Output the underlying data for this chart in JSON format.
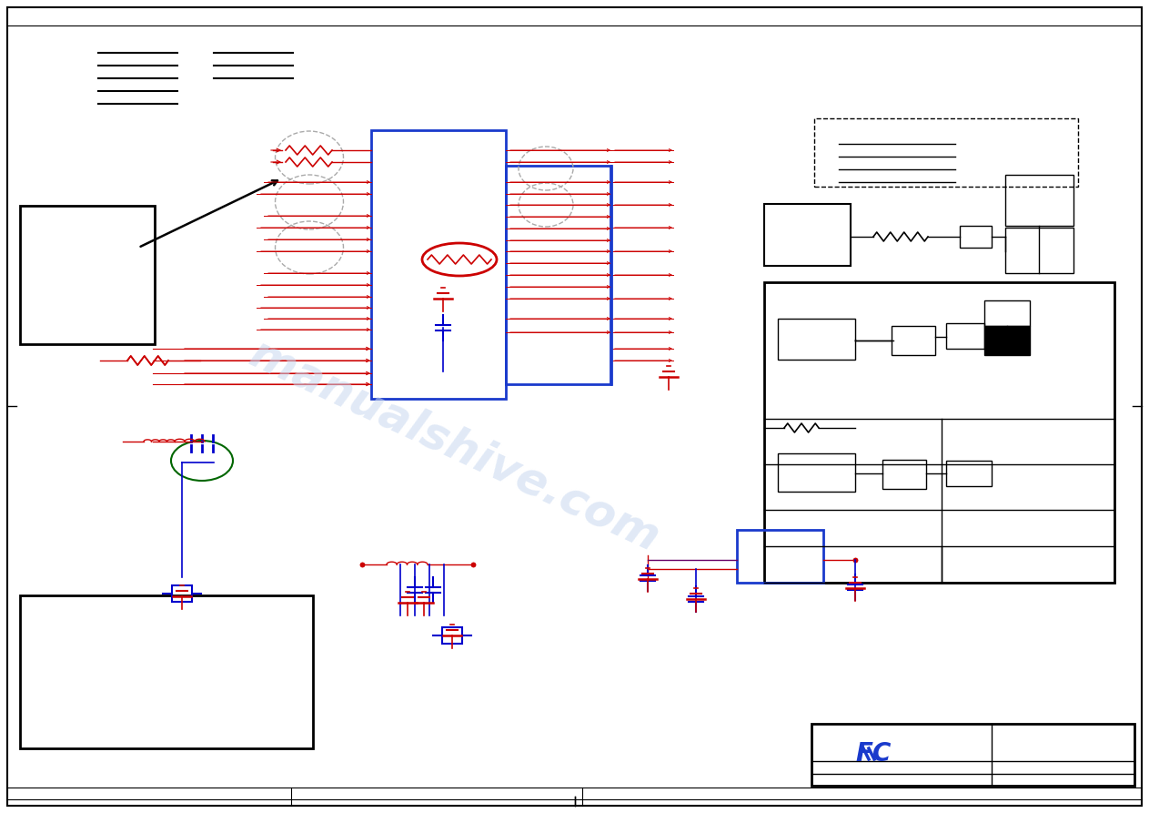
{
  "bg_color": "#ffffff",
  "red": "#cc0000",
  "blue": "#0000cc",
  "dark_blue": "#1a3acc",
  "purple": "#660066",
  "green": "#006600",
  "gray_dash": "#aaaaaa",
  "black": "#000000",
  "watermark_color": "#c8d8f0",
  "fig_width": 12.63,
  "fig_height": 8.93
}
